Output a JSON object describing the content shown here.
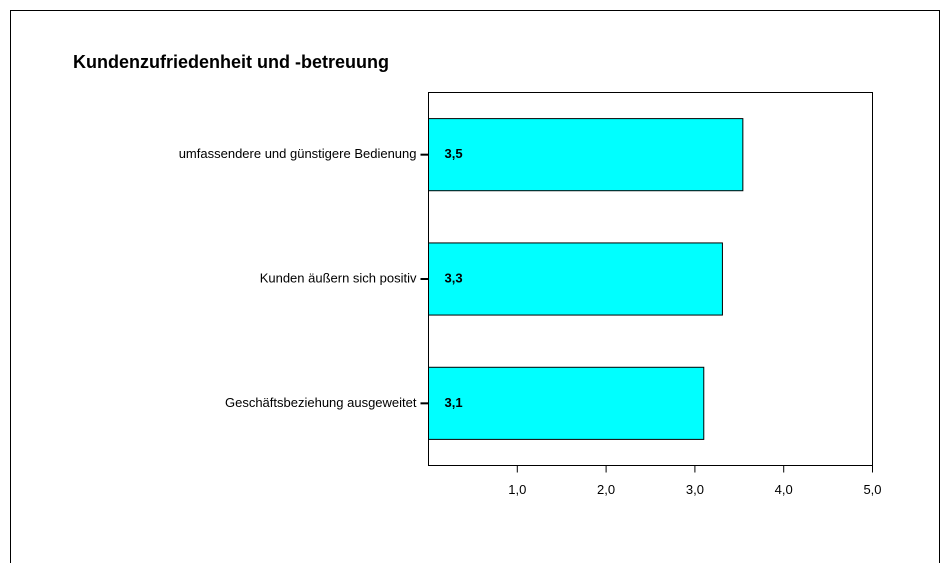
{
  "chart_data": {
    "type": "bar",
    "orientation": "horizontal",
    "title": "Kundenzufriedenheit und -betreuung",
    "categories": [
      "umfassendere und günstigere Bedienung",
      "Kunden äußern sich positiv",
      "Geschäftsbeziehung ausgeweitet"
    ],
    "values": [
      3.54,
      3.31,
      3.1
    ],
    "value_labels": [
      "3,5",
      "3,3",
      "3,1"
    ],
    "color": "#00ffff",
    "xlim": [
      0,
      5
    ],
    "xticks": [
      {
        "value": 1,
        "label": "1,0"
      },
      {
        "value": 2,
        "label": "2,0"
      },
      {
        "value": 3,
        "label": "3,0"
      },
      {
        "value": 4,
        "label": "4,0"
      },
      {
        "value": 5,
        "label": "5,0"
      }
    ]
  }
}
